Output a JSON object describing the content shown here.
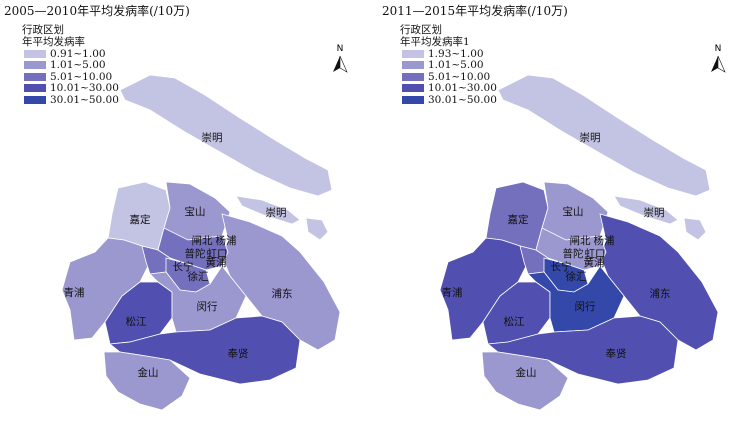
{
  "palette": {
    "c1": "#c3c4e3",
    "c2": "#9b97cf",
    "c3": "#7470bd",
    "c4": "#5150b0",
    "c5": "#3348a8"
  },
  "panels": [
    {
      "title": "2005—2010年平均发病率(/10万)",
      "legend_title_line1": "行政区划",
      "legend_title_line2": "年平均发病率",
      "legend": [
        {
          "label": "0.91~1.00",
          "class": "c1"
        },
        {
          "label": "1.01~5.00",
          "class": "c2"
        },
        {
          "label": "5.01~10.00",
          "class": "c3"
        },
        {
          "label": "10.01~30.00",
          "class": "c4"
        },
        {
          "label": "30.01~50.00",
          "class": "c5"
        }
      ],
      "north_label": "N",
      "district_classes": {
        "chongming": "c1",
        "changxing": "c1",
        "hengsha": "c1",
        "jiading": "c1",
        "baoshan": "c2",
        "pudong": "c2",
        "qingpu": "c2",
        "songjiang": "c4",
        "fengxian": "c4",
        "jinshan": "c2",
        "minhang": "c2",
        "xuhui": "c3",
        "changning": "c3",
        "central": "c3"
      },
      "labels": {
        "chongming": "崇明",
        "changxing": "崇明",
        "jiading": "嘉定",
        "baoshan": "宝山",
        "zhabei": "闸北",
        "yangpu": "杨浦",
        "putuo": "普陀",
        "hongkou": "虹口",
        "changning": "长宁",
        "huangpu": "黄浦",
        "xuhui": "徐汇",
        "pudong": "浦东",
        "qingpu": "青浦",
        "minhang": "闵行",
        "songjiang": "松江",
        "fengxian": "奉贤",
        "jinshan": "金山"
      }
    },
    {
      "title": "2011—2015年平均发病率(/10万)",
      "legend_title_line1": "行政区划",
      "legend_title_line2": "年平均发病率1",
      "legend": [
        {
          "label": "1.93~1.00",
          "class": "c1"
        },
        {
          "label": "1.01~5.00",
          "class": "c2"
        },
        {
          "label": "5.01~10.00",
          "class": "c3"
        },
        {
          "label": "10.01~30.00",
          "class": "c4"
        },
        {
          "label": "30.01~50.00",
          "class": "c5"
        }
      ],
      "north_label": "N",
      "district_classes": {
        "chongming": "c1",
        "changxing": "c1",
        "hengsha": "c1",
        "jiading": "c3",
        "baoshan": "c2",
        "pudong": "c4",
        "qingpu": "c4",
        "songjiang": "c4",
        "fengxian": "c4",
        "jinshan": "c2",
        "minhang": "c5",
        "xuhui": "c5",
        "changning": "c3",
        "central": "c2"
      },
      "labels": {
        "chongming": "崇明",
        "changxing": "崇明",
        "jiading": "嘉定",
        "baoshan": "宝山",
        "zhabei": "闸北",
        "yangpu": "杨浦",
        "putuo": "普陀",
        "hongkou": "虹口",
        "changning": "长宁",
        "huangpu": "黄浦",
        "xuhui": "徐汇",
        "pudong": "浦东",
        "qingpu": "青浦",
        "minhang": "闵行",
        "songjiang": "松江",
        "fengxian": "奉贤",
        "jinshan": "金山"
      }
    }
  ]
}
